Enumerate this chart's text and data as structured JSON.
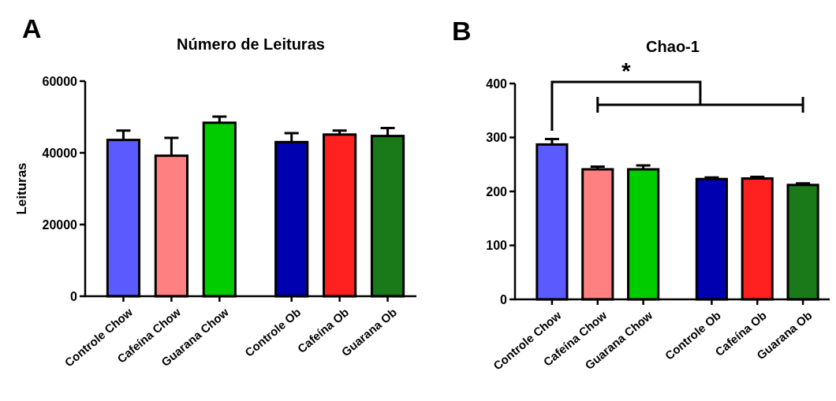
{
  "chart_data": [
    {
      "type": "bar",
      "title": "Número de Leituras",
      "ylabel": "Leituras",
      "annotations": [
        "A"
      ],
      "categories": [
        "Controle Chow",
        "Cafeína Chow",
        "Guarana Chow",
        null,
        "Controle Ob",
        "Cafeína Ob",
        "Guarana Ob"
      ],
      "values": [
        43600,
        39200,
        48400,
        null,
        43000,
        45100,
        44700
      ],
      "errors": [
        2600,
        5000,
        1700,
        null,
        2500,
        1100,
        2200
      ],
      "colors": [
        "#5a5aff",
        "#ff8080",
        "#00cc00",
        "#000000",
        "#0000b0",
        "#ff2020",
        "#1a7a1a"
      ],
      "ylim": [
        0,
        60000
      ],
      "yticks": [
        0,
        20000,
        40000,
        60000
      ]
    },
    {
      "type": "bar",
      "title": "Chao-1",
      "annotations": [
        "B",
        "*"
      ],
      "categories": [
        "Controle Chow",
        "Cafeína Chow",
        "Guarana Chow",
        null,
        "Controle Ob",
        "Cafeína Ob",
        "Guarana Ob"
      ],
      "values": [
        287,
        241,
        241,
        null,
        223,
        224,
        212
      ],
      "errors": [
        10,
        5,
        7,
        null,
        3,
        3,
        3
      ],
      "colors": [
        "#5a5aff",
        "#ff8080",
        "#00cc00",
        "#000000",
        "#0000b0",
        "#ff2020",
        "#1a7a1a"
      ],
      "ylim": [
        0,
        400
      ],
      "yticks": [
        0,
        100,
        200,
        300,
        400
      ]
    }
  ]
}
